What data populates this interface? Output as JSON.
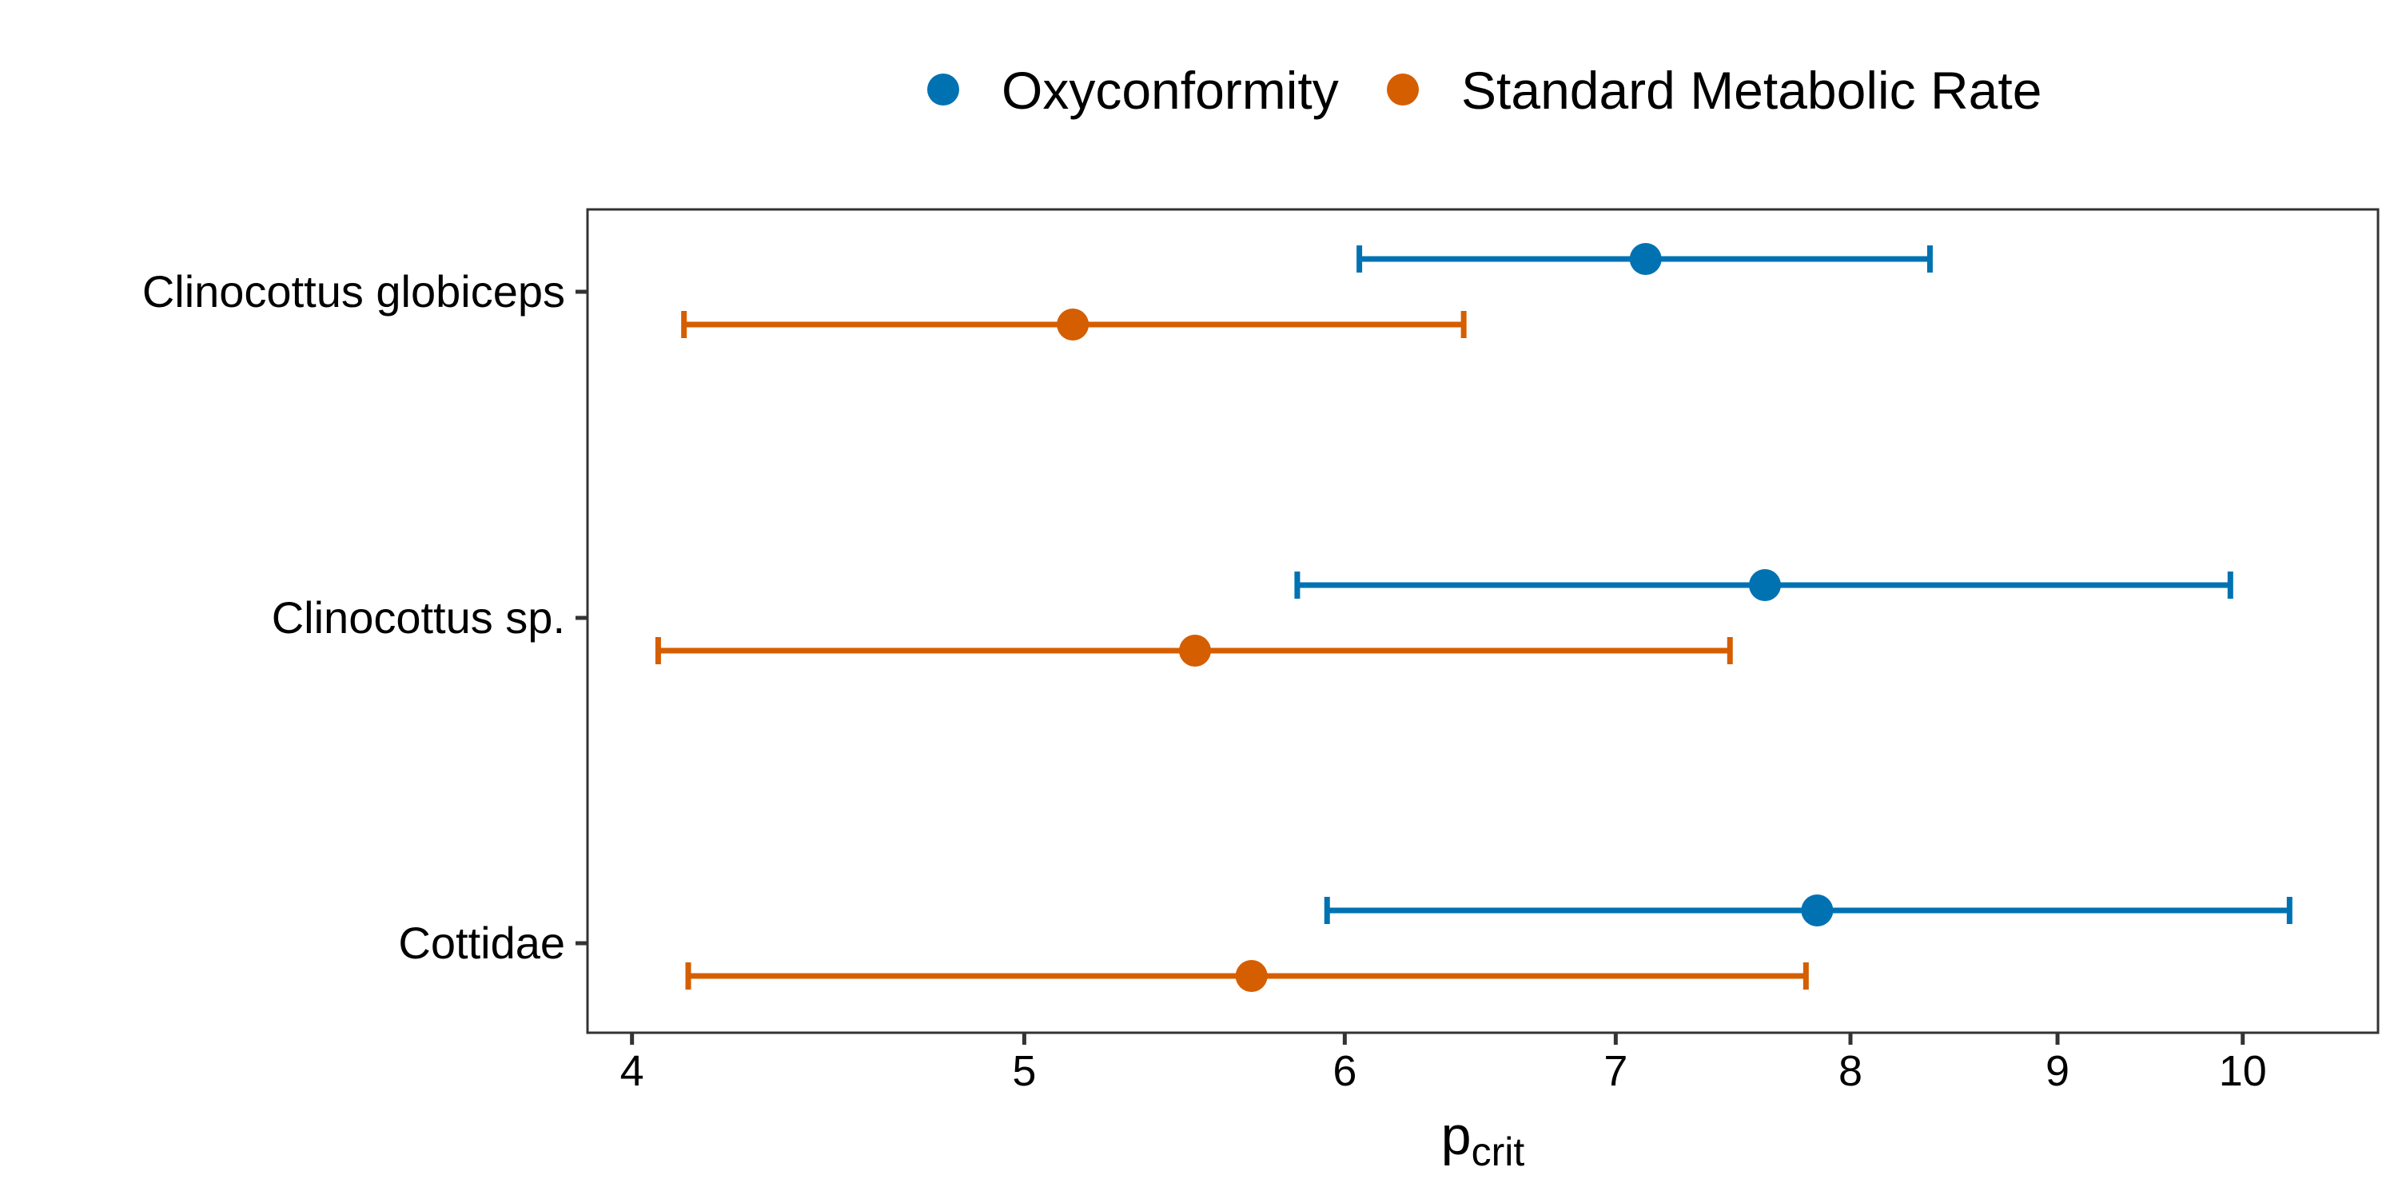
{
  "chart_data": {
    "type": "errorbar",
    "xscale": "log",
    "xlabel_main": "p",
    "xlabel_sub": "crit",
    "xlim": [
      3.9,
      10.8
    ],
    "xticks": [
      4,
      5,
      6,
      7,
      8,
      9,
      10
    ],
    "xtick_labels": [
      "4",
      "5",
      "6",
      "7",
      "8",
      "9",
      "10"
    ],
    "categories": [
      "Clinocottus globiceps",
      "Clinocottus sp.",
      "Cottidae"
    ],
    "legend_position": "top",
    "grid": false,
    "series": [
      {
        "name": "Oxyconformity",
        "color": "#0072B2",
        "points": [
          {
            "category": "Clinocottus globiceps",
            "value": 7.12,
            "low": 6.05,
            "high": 8.37
          },
          {
            "category": "Clinocottus sp.",
            "value": 7.62,
            "low": 5.84,
            "high": 9.93
          },
          {
            "category": "Cottidae",
            "value": 7.85,
            "low": 5.94,
            "high": 10.27
          }
        ]
      },
      {
        "name": "Standard Metabolic Rate",
        "color": "#D55E00",
        "points": [
          {
            "category": "Clinocottus globiceps",
            "value": 5.14,
            "low": 4.12,
            "high": 6.42
          },
          {
            "category": "Clinocottus sp.",
            "value": 5.51,
            "low": 4.06,
            "high": 7.47
          },
          {
            "category": "Cottidae",
            "value": 5.69,
            "low": 4.13,
            "high": 7.8
          }
        ]
      }
    ]
  }
}
